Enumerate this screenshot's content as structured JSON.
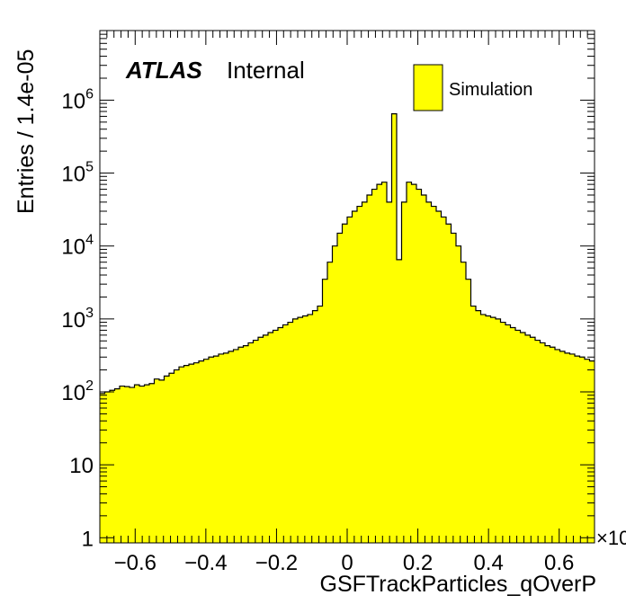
{
  "chart_data": {
    "type": "bar",
    "style": "step-histogram",
    "xlabel": "GSFTrackParticles_qOverP",
    "ylabel": "Entries / 1.4e-05",
    "x_multiplier_label": "×10",
    "xlim": [
      -0.7,
      0.7
    ],
    "ylim": [
      0.85,
      9000000
    ],
    "log_y": true,
    "grid": false,
    "legend_position": "top-right",
    "fill_color": "#ffff00",
    "line_color": "#000000",
    "x_ticks": [
      {
        "value": -0.6,
        "label": "−0.6"
      },
      {
        "value": -0.4,
        "label": "−0.4"
      },
      {
        "value": -0.2,
        "label": "−0.2"
      },
      {
        "value": 0,
        "label": "0"
      },
      {
        "value": 0.2,
        "label": "0.2"
      },
      {
        "value": 0.4,
        "label": "0.4"
      },
      {
        "value": 0.6,
        "label": "0.6"
      }
    ],
    "y_ticks": [
      {
        "value": 1,
        "label": "1",
        "exp": ""
      },
      {
        "value": 10,
        "label": "10",
        "exp": ""
      },
      {
        "value": 100,
        "label": "10",
        "exp": "2"
      },
      {
        "value": 1000,
        "label": "10",
        "exp": "3"
      },
      {
        "value": 10000,
        "label": "10",
        "exp": "4"
      },
      {
        "value": 100000,
        "label": "10",
        "exp": "5"
      },
      {
        "value": 1000000,
        "label": "10",
        "exp": "6"
      }
    ],
    "bin_width": 0.014,
    "bin_start": -0.7,
    "series": [
      {
        "name": "Simulation",
        "values": [
          95,
          100,
          105,
          110,
          120,
          118,
          115,
          125,
          120,
          125,
          130,
          150,
          145,
          165,
          180,
          200,
          220,
          230,
          240,
          250,
          265,
          280,
          300,
          310,
          330,
          340,
          360,
          380,
          410,
          430,
          470,
          510,
          560,
          600,
          650,
          700,
          760,
          830,
          900,
          1000,
          1050,
          1100,
          1150,
          1300,
          1500,
          3500,
          6000,
          10000,
          15000,
          20000,
          25000,
          30000,
          35000,
          40000,
          50000,
          60000,
          70000,
          75000,
          40000,
          650000,
          6500,
          40000,
          75000,
          70000,
          60000,
          50000,
          40000,
          35000,
          30000,
          25000,
          20000,
          15000,
          10000,
          6000,
          3500,
          1500,
          1300,
          1150,
          1100,
          1050,
          1000,
          900,
          830,
          760,
          700,
          650,
          600,
          560,
          510,
          470,
          430,
          410,
          380,
          360,
          340,
          330,
          310,
          300,
          280,
          265
        ]
      }
    ]
  },
  "annotations": {
    "atlas": "ATLAS",
    "internal": "Internal"
  }
}
